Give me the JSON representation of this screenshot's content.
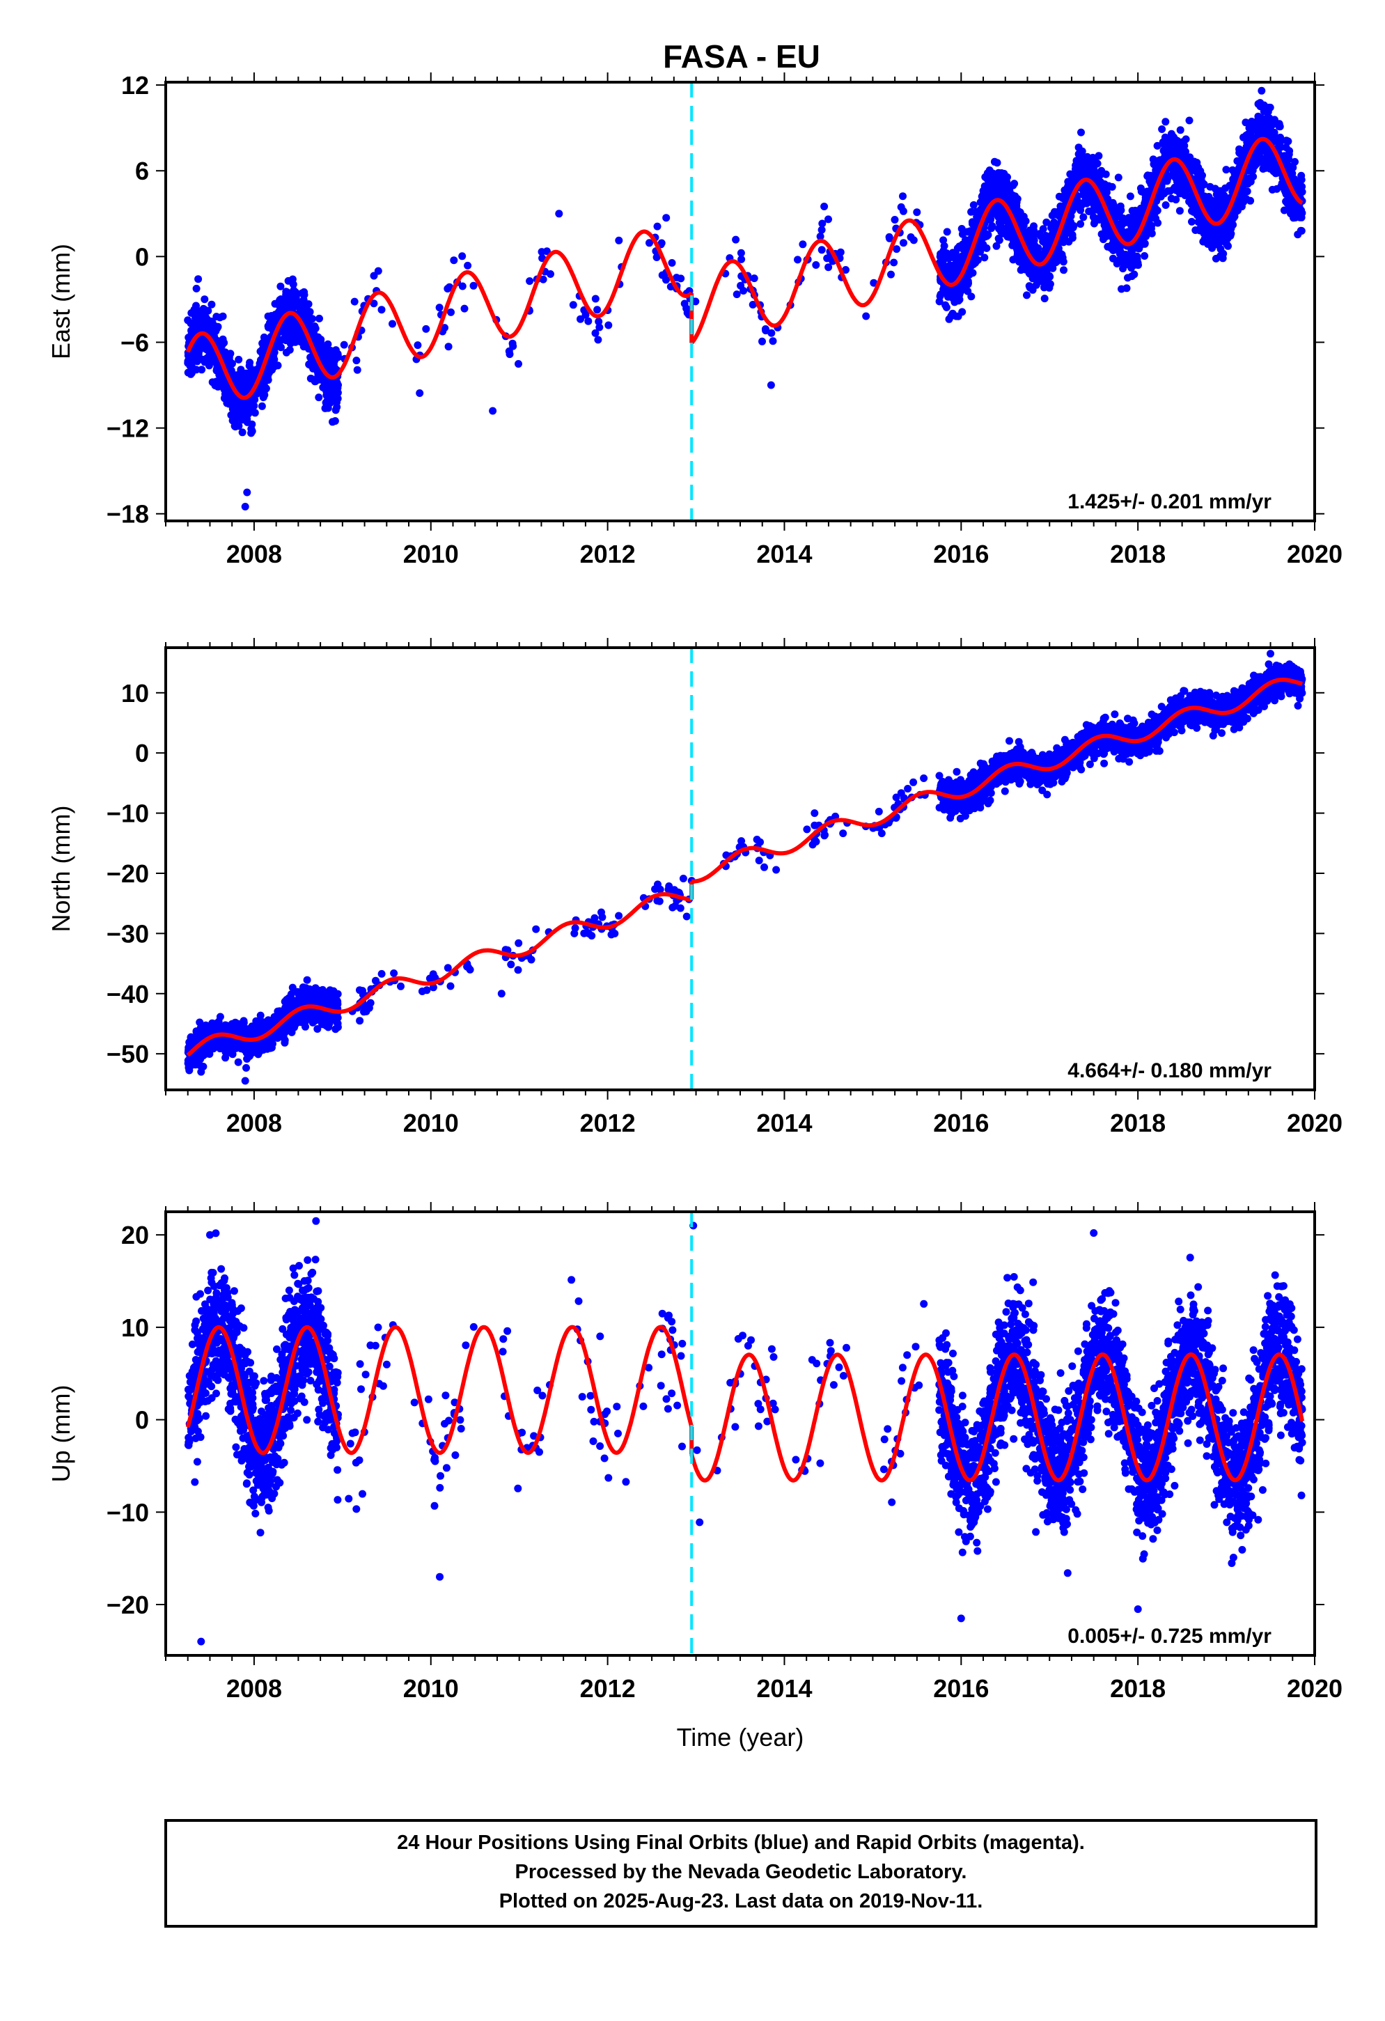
{
  "title": "FASA - EU",
  "colors": {
    "final": "#0000ff",
    "model": "#ff0000",
    "break": "#00e5ff",
    "frame": "#000000"
  },
  "caption": [
    "24 Hour Positions Using Final Orbits (blue) and Rapid Orbits (magenta).",
    "Processed by the Nevada Geodetic Laboratory.",
    "Plotted on 2025-Aug-23. Last data on 2019-Nov-11."
  ],
  "chart_data": [
    {
      "type": "scatter",
      "ylabel": "East (mm)",
      "xlabel": "",
      "xlim": [
        2007.0,
        2020.0
      ],
      "ylim": [
        -18.5,
        12.2
      ],
      "yticks": [
        12,
        6,
        0,
        -6,
        -12,
        -18
      ],
      "ytick_labels": [
        "12",
        "6",
        "0",
        "−6",
        "−12",
        "−18"
      ],
      "xticks": [
        2008,
        2010,
        2012,
        2014,
        2016,
        2018,
        2020
      ],
      "xtick_labels": [
        "2008",
        "2010",
        "2012",
        "2014",
        "2016",
        "2018",
        "2020"
      ],
      "break_year": 2012.95,
      "rate_label": "1.425+/- 0.201 mm/yr",
      "model": {
        "t0": 2007.25,
        "t1": 2019.86,
        "jump": -3.5,
        "rate": 1.425,
        "offset": -8.2,
        "amp": 2.6,
        "peak": 0.4
      },
      "samples": {
        "seed": 11,
        "noise": 1.1,
        "dense": [
          [
            2007.25,
            2008.95,
            1100
          ],
          [
            2015.75,
            2019.86,
            2600
          ]
        ],
        "sparse": [
          [
            2008.95,
            2015.75,
            170
          ]
        ],
        "outliers": [
          [
            2007.9,
            -17.5
          ],
          [
            2007.92,
            -16.5
          ],
          [
            2010.7,
            -10.8
          ],
          [
            2014.45,
            3.5
          ],
          [
            2011.45,
            3.0
          ],
          [
            2019.4,
            11.6
          ],
          [
            2013.85,
            -9.0
          ]
        ]
      }
    },
    {
      "type": "scatter",
      "ylabel": "North (mm)",
      "xlabel": "",
      "xlim": [
        2007.0,
        2020.0
      ],
      "ylim": [
        -56.0,
        17.5
      ],
      "yticks": [
        10,
        0,
        -10,
        -20,
        -30,
        -40,
        -50
      ],
      "ytick_labels": [
        "10",
        "0",
        "−10",
        "−20",
        "−30",
        "−40",
        "−50"
      ],
      "xticks": [
        2008,
        2010,
        2012,
        2014,
        2016,
        2018,
        2020
      ],
      "xtick_labels": [
        "2008",
        "2010",
        "2012",
        "2014",
        "2016",
        "2018",
        "2020"
      ],
      "break_year": 2012.95,
      "rate_label": "4.664+/- 0.180 mm/yr",
      "model": {
        "t0": 2007.25,
        "t1": 2019.86,
        "jump": 3.0,
        "rate": 4.664,
        "offset": -49.8,
        "amp": 1.4,
        "peak": 0.55
      },
      "samples": {
        "seed": 23,
        "noise": 1.3,
        "dense": [
          [
            2007.25,
            2008.95,
            1100
          ],
          [
            2015.75,
            2019.86,
            2600
          ]
        ],
        "sparse": [
          [
            2008.95,
            2015.75,
            170
          ]
        ],
        "outliers": [
          [
            2007.9,
            -54.5
          ],
          [
            2010.8,
            -40.0
          ],
          [
            2007.4,
            -53.0
          ],
          [
            2019.5,
            16.5
          ]
        ]
      }
    },
    {
      "type": "scatter",
      "ylabel": "Up (mm)",
      "xlabel": "Time (year)",
      "xlim": [
        2007.0,
        2020.0
      ],
      "ylim": [
        -25.5,
        22.5
      ],
      "yticks": [
        20,
        10,
        0,
        -10,
        -20
      ],
      "ytick_labels": [
        "20",
        "10",
        "0",
        "−10",
        "−20"
      ],
      "xticks": [
        2008,
        2010,
        2012,
        2014,
        2016,
        2018,
        2020
      ],
      "xtick_labels": [
        "2008",
        "2010",
        "2012",
        "2014",
        "2016",
        "2018",
        "2020"
      ],
      "break_year": 2012.95,
      "rate_label": "0.005+/- 0.725 mm/yr",
      "model": {
        "t0": 2007.25,
        "t1": 2019.86,
        "jump": -3.0,
        "rate": 0.005,
        "offset": 3.2,
        "amp": 6.8,
        "peak": 0.6
      },
      "samples": {
        "seed": 37,
        "noise": 3.4,
        "dense": [
          [
            2007.25,
            2008.95,
            1100
          ],
          [
            2015.75,
            2019.86,
            2600
          ]
        ],
        "sparse": [
          [
            2008.95,
            2015.75,
            170
          ]
        ],
        "outliers": [
          [
            2007.4,
            -24.0
          ],
          [
            2008.7,
            21.5
          ],
          [
            2016.0,
            -21.5
          ],
          [
            2018.0,
            -20.5
          ],
          [
            2017.5,
            20.2
          ],
          [
            2012.97,
            21.0
          ],
          [
            2010.1,
            -17.0
          ],
          [
            2007.5,
            20.0
          ]
        ]
      }
    }
  ]
}
